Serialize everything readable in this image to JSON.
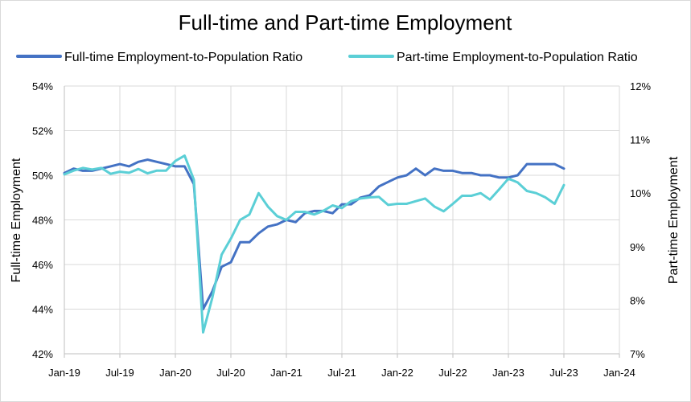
{
  "chart_data": {
    "type": "line",
    "title": "Full-time and Part-time Employment",
    "y_left_label": "Full-time Employment",
    "y_right_label": "Part-time Employment",
    "y_left_range": [
      42,
      54
    ],
    "y_left_ticks": [
      "42%",
      "44%",
      "46%",
      "48%",
      "50%",
      "52%",
      "54%"
    ],
    "y_right_range": [
      7,
      12
    ],
    "y_right_ticks": [
      "7%",
      "8%",
      "9%",
      "10%",
      "11%",
      "12%"
    ],
    "x_range": [
      "2019-01",
      "2024-01"
    ],
    "x_ticks": [
      "Jan-19",
      "Jul-19",
      "Jan-20",
      "Jul-20",
      "Jan-21",
      "Jul-21",
      "Jan-22",
      "Jul-22",
      "Jan-23",
      "Jul-23",
      "Jan-24"
    ],
    "grid": true,
    "legend_position": "top",
    "series": [
      {
        "name": "Full-time Employment-to-Population Ratio",
        "axis": "left",
        "color": "#4472c4",
        "x": [
          "2019-01",
          "2019-02",
          "2019-03",
          "2019-04",
          "2019-05",
          "2019-06",
          "2019-07",
          "2019-08",
          "2019-09",
          "2019-10",
          "2019-11",
          "2019-12",
          "2020-01",
          "2020-02",
          "2020-03",
          "2020-04",
          "2020-05",
          "2020-06",
          "2020-07",
          "2020-08",
          "2020-09",
          "2020-10",
          "2020-11",
          "2020-12",
          "2021-01",
          "2021-02",
          "2021-03",
          "2021-04",
          "2021-05",
          "2021-06",
          "2021-07",
          "2021-08",
          "2021-09",
          "2021-10",
          "2021-11",
          "2021-12",
          "2022-01",
          "2022-02",
          "2022-03",
          "2022-04",
          "2022-05",
          "2022-06",
          "2022-07",
          "2022-08",
          "2022-09",
          "2022-10",
          "2022-11",
          "2022-12",
          "2023-01",
          "2023-02",
          "2023-03",
          "2023-04",
          "2023-05",
          "2023-06",
          "2023-07"
        ],
        "values": [
          50.1,
          50.3,
          50.2,
          50.2,
          50.3,
          50.4,
          50.5,
          50.4,
          50.6,
          50.7,
          50.6,
          50.5,
          50.4,
          50.4,
          49.6,
          44.0,
          44.8,
          45.9,
          46.1,
          47.0,
          47.0,
          47.4,
          47.7,
          47.8,
          48.0,
          47.9,
          48.3,
          48.4,
          48.4,
          48.3,
          48.7,
          48.7,
          49.0,
          49.1,
          49.5,
          49.7,
          49.9,
          50.0,
          50.3,
          50.0,
          50.3,
          50.2,
          50.2,
          50.1,
          50.1,
          50.0,
          50.0,
          49.9,
          49.9,
          50.0,
          50.5,
          50.5,
          50.5,
          50.5,
          50.3
        ]
      },
      {
        "name": "Part-time Employment-to-Population Ratio",
        "axis": "right",
        "color": "#5bcfd6",
        "x": [
          "2019-01",
          "2019-02",
          "2019-03",
          "2019-04",
          "2019-05",
          "2019-06",
          "2019-07",
          "2019-08",
          "2019-09",
          "2019-10",
          "2019-11",
          "2019-12",
          "2020-01",
          "2020-02",
          "2020-03",
          "2020-04",
          "2020-05",
          "2020-06",
          "2020-07",
          "2020-08",
          "2020-09",
          "2020-10",
          "2020-11",
          "2020-12",
          "2021-01",
          "2021-02",
          "2021-03",
          "2021-04",
          "2021-05",
          "2021-06",
          "2021-07",
          "2021-08",
          "2021-09",
          "2021-10",
          "2021-11",
          "2021-12",
          "2022-01",
          "2022-02",
          "2022-03",
          "2022-04",
          "2022-05",
          "2022-06",
          "2022-07",
          "2022-08",
          "2022-09",
          "2022-10",
          "2022-11",
          "2022-12",
          "2023-01",
          "2023-02",
          "2023-03",
          "2023-04",
          "2023-05",
          "2023-06",
          "2023-07"
        ],
        "values": [
          10.35,
          10.42,
          10.47,
          10.44,
          10.47,
          10.36,
          10.4,
          10.38,
          10.45,
          10.37,
          10.42,
          10.42,
          10.6,
          10.7,
          10.25,
          7.4,
          8.05,
          8.85,
          9.15,
          9.5,
          9.6,
          10.0,
          9.75,
          9.57,
          9.5,
          9.65,
          9.65,
          9.6,
          9.67,
          9.77,
          9.72,
          9.85,
          9.9,
          9.92,
          9.93,
          9.78,
          9.8,
          9.8,
          9.85,
          9.9,
          9.75,
          9.66,
          9.8,
          9.95,
          9.95,
          10.0,
          9.88,
          10.07,
          10.27,
          10.2,
          10.04,
          10.0,
          9.92,
          9.8,
          10.15
        ]
      }
    ]
  }
}
